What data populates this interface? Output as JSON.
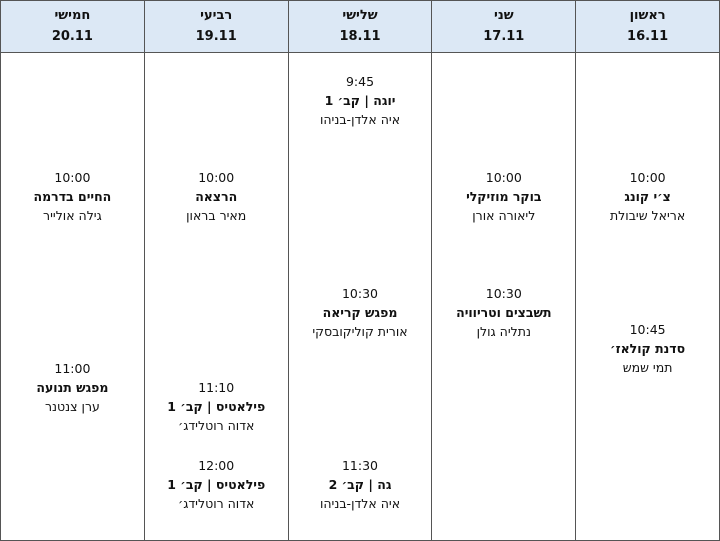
{
  "days": [
    {
      "day": "ראשון",
      "date": "16.11",
      "events": [
        {
          "time": "10:00",
          "title": "צ׳י קונג",
          "host": "אריאל שיבולת"
        },
        {
          "time": "10:45",
          "title": "סדנת קולאז׳",
          "host": "תמי שמש"
        }
      ]
    },
    {
      "day": "שני",
      "date": "17.11",
      "events": [
        {
          "time": "10:00",
          "title": "בוקר מוזיקלי",
          "host": "ליאורה אורן"
        },
        {
          "time": "10:30",
          "title": "תשבצים וטריוויה",
          "host": "נתליה גולן"
        }
      ]
    },
    {
      "day": "שלישי",
      "date": "18.11",
      "events": [
        {
          "time": "9:45",
          "title": "יוגה | קב׳ 1",
          "host": "איה אלדן-בניהו"
        },
        {
          "time": "10:30",
          "title": "מפגש קריאה",
          "host": "אורית קוליקובסקי"
        },
        {
          "time": "11:30",
          "title": "גה | קב׳ 2",
          "host": "איה אלדן-בניהו"
        }
      ]
    },
    {
      "day": "רביעי",
      "date": "19.11",
      "events": [
        {
          "time": "10:00",
          "title": "הרצאה",
          "host": "מאיר בראון"
        },
        {
          "time": "11:10",
          "title": "פילאטיס | קב׳ 1",
          "host": "אדוה רוטלידג׳"
        },
        {
          "time": "12:00",
          "title": "פילאטיס | קב׳ 1",
          "host": "אדוה רוטלידג׳"
        }
      ]
    },
    {
      "day": "חמישי",
      "date": "20.11",
      "events": [
        {
          "time": "10:00",
          "title": "החיים בדרמה",
          "host": "גילה אולייר"
        },
        {
          "time": "11:00",
          "title": "מפגש תנועה",
          "host": "ערן צנטנר"
        }
      ]
    }
  ]
}
